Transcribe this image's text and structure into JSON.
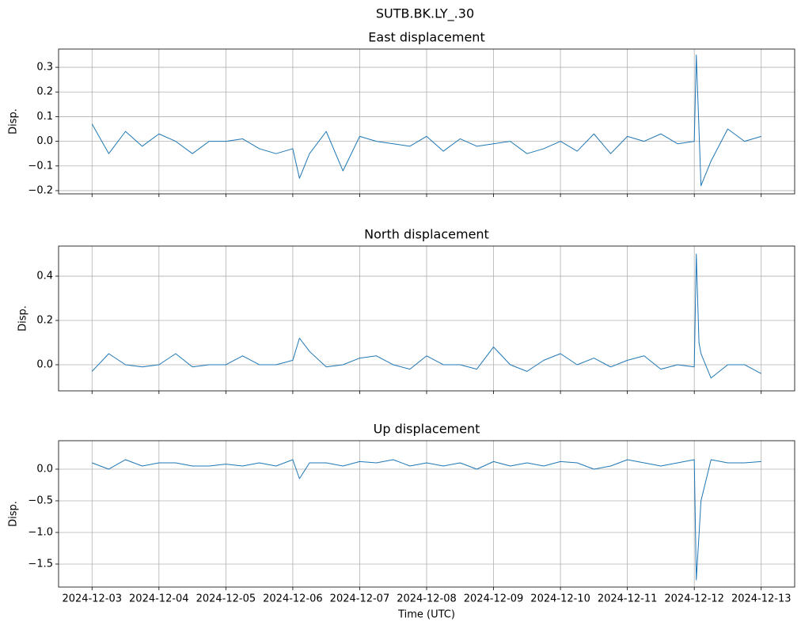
{
  "title": "SUTB.BK.LY_.30",
  "chart_data": [
    {
      "type": "line",
      "title": "East displacement",
      "ylabel": "Disp.",
      "x": [
        0,
        0.25,
        0.5,
        0.75,
        1,
        1.25,
        1.5,
        1.75,
        2,
        2.25,
        2.5,
        2.75,
        3,
        3.1,
        3.25,
        3.5,
        3.75,
        4,
        4.25,
        4.5,
        4.75,
        5,
        5.25,
        5.5,
        5.75,
        6,
        6.25,
        6.5,
        6.75,
        7,
        7.25,
        7.5,
        7.75,
        8,
        8.25,
        8.5,
        8.75,
        9,
        9.03,
        9.07,
        9.1,
        9.25,
        9.5,
        9.75,
        10
      ],
      "series": [
        {
          "color": "#1f77b4",
          "values": [
            0.07,
            -0.05,
            0.04,
            -0.02,
            0.03,
            0.0,
            -0.05,
            0.0,
            0.0,
            0.01,
            -0.03,
            -0.05,
            -0.03,
            -0.15,
            -0.05,
            0.04,
            -0.12,
            0.02,
            0.0,
            -0.01,
            -0.02,
            0.02,
            -0.04,
            0.01,
            -0.02,
            -0.01,
            0.0,
            -0.05,
            -0.03,
            0.0,
            -0.04,
            0.03,
            -0.05,
            0.02,
            0.0,
            0.03,
            -0.01,
            0.0,
            0.35,
            0.05,
            -0.18,
            -0.08,
            0.05,
            0.0,
            0.02
          ]
        }
      ],
      "xlim": [
        -0.5,
        10.5
      ],
      "xticks": [
        0,
        1,
        2,
        3,
        4,
        5,
        6,
        7,
        8,
        9,
        10
      ],
      "ylim": [
        -0.213,
        0.374
      ],
      "yticks": [
        {
          "value": -0.2,
          "label": "−0.2"
        },
        {
          "value": -0.1,
          "label": "−0.1"
        },
        {
          "value": 0,
          "label": "0.0"
        },
        {
          "value": 0.1,
          "label": "0.1"
        },
        {
          "value": 0.2,
          "label": "0.2"
        },
        {
          "value": 0.3,
          "label": "0.3"
        }
      ],
      "grid": true
    },
    {
      "type": "line",
      "title": "North displacement",
      "ylabel": "Disp.",
      "x": [
        0,
        0.25,
        0.5,
        0.75,
        1,
        1.25,
        1.5,
        1.75,
        2,
        2.25,
        2.5,
        2.75,
        3,
        3.1,
        3.25,
        3.5,
        3.75,
        4,
        4.25,
        4.5,
        4.75,
        5,
        5.25,
        5.5,
        5.75,
        6,
        6.25,
        6.5,
        6.75,
        7,
        7.25,
        7.5,
        7.75,
        8,
        8.25,
        8.5,
        8.75,
        9,
        9.03,
        9.07,
        9.1,
        9.25,
        9.5,
        9.75,
        10
      ],
      "series": [
        {
          "color": "#1f77b4",
          "values": [
            -0.03,
            0.05,
            0.0,
            -0.01,
            0.0,
            0.05,
            -0.01,
            0.0,
            0.0,
            0.04,
            0.0,
            0.0,
            0.02,
            0.12,
            0.06,
            -0.01,
            0.0,
            0.03,
            0.04,
            0.0,
            -0.02,
            0.04,
            0.0,
            0.0,
            -0.02,
            0.08,
            0.0,
            -0.03,
            0.02,
            0.05,
            0.0,
            0.03,
            -0.01,
            0.02,
            0.04,
            -0.02,
            0.0,
            -0.01,
            0.5,
            0.1,
            0.05,
            -0.06,
            0.0,
            0.0,
            -0.04
          ]
        }
      ],
      "xlim": [
        -0.5,
        10.5
      ],
      "xticks": [
        0,
        1,
        2,
        3,
        4,
        5,
        6,
        7,
        8,
        9,
        10
      ],
      "ylim": [
        -0.118,
        0.536
      ],
      "yticks": [
        {
          "value": 0,
          "label": "0.0"
        },
        {
          "value": 0.2,
          "label": "0.2"
        },
        {
          "value": 0.4,
          "label": "0.4"
        }
      ],
      "grid": true
    },
    {
      "type": "line",
      "title": "Up displacement",
      "ylabel": "Disp.",
      "xlabel": "Time (UTC)",
      "x": [
        0,
        0.25,
        0.5,
        0.75,
        1,
        1.25,
        1.5,
        1.75,
        2,
        2.25,
        2.5,
        2.75,
        3,
        3.1,
        3.25,
        3.5,
        3.75,
        4,
        4.25,
        4.5,
        4.75,
        5,
        5.25,
        5.5,
        5.75,
        6,
        6.25,
        6.5,
        6.75,
        7,
        7.25,
        7.5,
        7.75,
        8,
        8.25,
        8.5,
        8.75,
        9,
        9.03,
        9.07,
        9.1,
        9.25,
        9.5,
        9.75,
        10
      ],
      "series": [
        {
          "color": "#1f77b4",
          "values": [
            0.1,
            0.0,
            0.15,
            0.05,
            0.1,
            0.1,
            0.05,
            0.05,
            0.08,
            0.05,
            0.1,
            0.05,
            0.15,
            -0.15,
            0.1,
            0.1,
            0.05,
            0.12,
            0.1,
            0.15,
            0.05,
            0.1,
            0.05,
            0.1,
            0.0,
            0.12,
            0.05,
            0.1,
            0.05,
            0.12,
            0.1,
            0.0,
            0.05,
            0.15,
            0.1,
            0.05,
            0.1,
            0.15,
            -1.75,
            -1.05,
            -0.5,
            0.15,
            0.1,
            0.1,
            0.12
          ]
        }
      ],
      "xlim": [
        -0.5,
        10.5
      ],
      "xticks": [
        {
          "value": 0,
          "label": "2024-12-03"
        },
        {
          "value": 1,
          "label": "2024-12-04"
        },
        {
          "value": 2,
          "label": "2024-12-05"
        },
        {
          "value": 3,
          "label": "2024-12-06"
        },
        {
          "value": 4,
          "label": "2024-12-07"
        },
        {
          "value": 5,
          "label": "2024-12-08"
        },
        {
          "value": 6,
          "label": "2024-12-09"
        },
        {
          "value": 7,
          "label": "2024-12-10"
        },
        {
          "value": 8,
          "label": "2024-12-11"
        },
        {
          "value": 9,
          "label": "2024-12-12"
        },
        {
          "value": 10,
          "label": "2024-12-13"
        }
      ],
      "ylim": [
        -1.863,
        0.45
      ],
      "yticks": [
        {
          "value": -1.5,
          "label": "−1.5"
        },
        {
          "value": -1.0,
          "label": "−1.0"
        },
        {
          "value": -0.5,
          "label": "−0.5"
        },
        {
          "value": 0,
          "label": "0.0"
        }
      ],
      "grid": true
    }
  ]
}
